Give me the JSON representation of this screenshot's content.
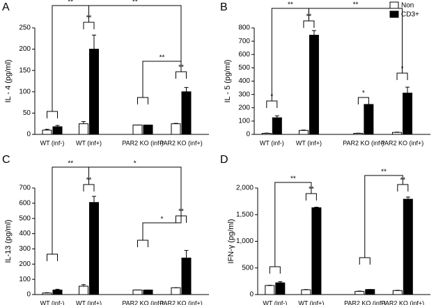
{
  "chart_data": [
    {
      "type": "bar",
      "title": "A",
      "ylabel": "IL - 4 (pg/ml)",
      "categories": [
        "WT (inf-)",
        "WT (inf+)",
        "PAR2 KO (inf-)",
        "PAR2 KO (inf+)"
      ],
      "series": [
        {
          "color": "#ffffff",
          "values": [
            10,
            25,
            22,
            25
          ],
          "errors": [
            2,
            5,
            0,
            1
          ]
        },
        {
          "color": "#000000",
          "values": [
            18,
            200,
            22,
            100
          ],
          "errors": [
            3,
            33,
            0,
            10
          ]
        }
      ],
      "ylim": [
        0,
        250
      ],
      "yticks": [
        0,
        50,
        100,
        150,
        200,
        250
      ],
      "annotations": [
        "**",
        "**",
        "**",
        "**",
        "**"
      ]
    },
    {
      "type": "bar",
      "title": "B",
      "ylabel": "IL - 5 (pg/ml)",
      "categories": [
        "WT (inf-)",
        "WT (inf+)",
        "PAR2 KO (inf-)",
        "PAR2 KO (inf+)"
      ],
      "series": [
        {
          "name": "Non",
          "color": "#ffffff",
          "values": [
            8,
            30,
            8,
            15
          ],
          "errors": [
            2,
            3,
            1,
            2
          ]
        },
        {
          "name": "CD3+",
          "color": "#000000",
          "values": [
            125,
            745,
            225,
            310
          ],
          "errors": [
            15,
            35,
            0,
            45
          ]
        }
      ],
      "ylim": [
        0,
        800
      ],
      "yticks": [
        0,
        100,
        200,
        300,
        400,
        500,
        600,
        700,
        800
      ],
      "legend": "upper right",
      "annotations": [
        "*",
        "**",
        "*",
        "*",
        "**",
        "**"
      ]
    },
    {
      "type": "bar",
      "title": "C",
      "ylabel": "IL-13 (pg/ml)",
      "categories": [
        "WT (inf-)",
        "WT (inf+)",
        "PAR2 KO (inf-)",
        "PAR2 KO (inf+)"
      ],
      "series": [
        {
          "color": "#ffffff",
          "values": [
            10,
            55,
            30,
            45
          ],
          "errors": [
            2,
            10,
            0,
            0
          ]
        },
        {
          "color": "#000000",
          "values": [
            30,
            605,
            30,
            240
          ],
          "errors": [
            5,
            40,
            0,
            50
          ]
        }
      ],
      "ylim": [
        0,
        700
      ],
      "yticks": [
        0,
        100,
        200,
        300,
        400,
        500,
        600,
        700
      ],
      "annotations": [
        "**",
        "**",
        "**",
        "*",
        "*"
      ]
    },
    {
      "type": "bar",
      "title": "D",
      "ylabel": "IFN-γ (pg/ml)",
      "categories": [
        "WT (inf-)",
        "WT (inf+)",
        "PAR2 KO (inf-)",
        "PAR2 KO (inf+)"
      ],
      "series": [
        {
          "color": "#ffffff",
          "values": [
            170,
            90,
            60,
            75
          ],
          "errors": [
            5,
            5,
            5,
            5
          ]
        },
        {
          "color": "#000000",
          "values": [
            220,
            1630,
            95,
            1790
          ],
          "errors": [
            20,
            10,
            0,
            40
          ]
        }
      ],
      "ylim": [
        0,
        2000
      ],
      "yticks": [
        0,
        500,
        {
          "value": 1000,
          "label": "1,000"
        },
        {
          "value": 1500,
          "label": "1,500"
        },
        {
          "value": 2000,
          "label": "2,000"
        }
      ],
      "annotations": [
        "**",
        "**",
        "**",
        "**"
      ]
    }
  ]
}
